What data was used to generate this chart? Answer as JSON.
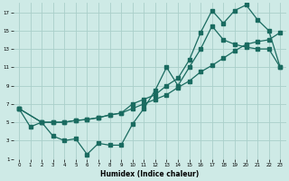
{
  "xlabel": "Humidex (Indice chaleur)",
  "bg_color": "#ceeae6",
  "grid_color": "#aacfca",
  "line_color": "#1a6b60",
  "xlim": [
    -0.5,
    23.5
  ],
  "ylim": [
    1,
    18
  ],
  "xticks": [
    0,
    1,
    2,
    3,
    4,
    5,
    6,
    7,
    8,
    9,
    10,
    11,
    12,
    13,
    14,
    15,
    16,
    17,
    18,
    19,
    20,
    21,
    22,
    23
  ],
  "yticks": [
    1,
    3,
    5,
    7,
    9,
    11,
    13,
    15,
    17
  ],
  "line1_x": [
    0,
    1,
    2,
    3,
    4,
    5,
    6,
    7,
    8,
    9,
    10,
    11,
    12,
    13,
    14,
    15,
    16,
    17,
    18,
    19,
    20,
    21,
    22,
    23
  ],
  "line1_y": [
    6.5,
    4.5,
    5.0,
    3.5,
    3.0,
    3.2,
    1.5,
    2.7,
    2.5,
    2.5,
    4.8,
    6.5,
    8.5,
    11.0,
    9.0,
    11.0,
    13.0,
    15.5,
    14.0,
    13.5,
    13.2,
    13.0,
    13.0,
    11.0
  ],
  "line2_x": [
    0,
    2,
    3,
    4,
    5,
    6,
    7,
    8,
    9,
    10,
    11,
    12,
    13,
    14,
    15,
    16,
    17,
    18,
    19,
    20,
    21,
    22,
    23
  ],
  "line2_y": [
    6.5,
    5.0,
    5.0,
    5.0,
    5.2,
    5.3,
    5.5,
    5.8,
    6.0,
    6.5,
    7.0,
    7.5,
    8.0,
    8.8,
    9.5,
    10.5,
    11.2,
    12.0,
    12.8,
    13.5,
    13.8,
    14.0,
    14.8
  ],
  "line3_x": [
    0,
    2,
    3,
    4,
    5,
    6,
    7,
    8,
    9,
    10,
    11,
    12,
    13,
    14,
    15,
    16,
    17,
    18,
    19,
    20,
    21,
    22,
    23
  ],
  "line3_y": [
    6.5,
    5.0,
    5.0,
    5.0,
    5.2,
    5.3,
    5.5,
    5.8,
    6.0,
    7.0,
    7.5,
    8.0,
    9.0,
    9.8,
    11.8,
    14.8,
    17.2,
    15.8,
    17.2,
    17.8,
    16.2,
    15.0,
    11.0
  ]
}
